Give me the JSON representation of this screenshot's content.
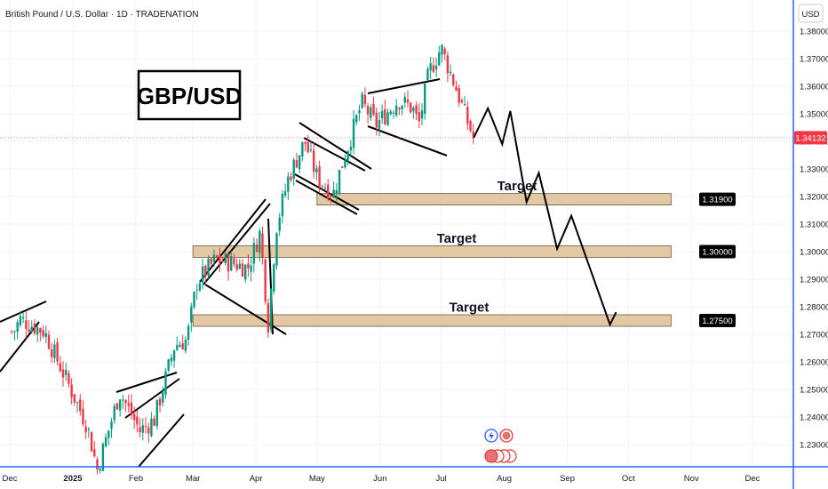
{
  "header": {
    "title": "British Pound / U.S. Dollar · 1D · TRADENATION",
    "currency": "USD"
  },
  "pair_label": "GBP/USD",
  "colors": {
    "up": "#089981",
    "down": "#f23645",
    "zone_fill": "#e2c9a4",
    "zone_stroke": "#6b5a45",
    "price_badge": "#f23645",
    "target_badge": "#000000",
    "grid": "#f0f3fa",
    "axis_border": "#2962ff"
  },
  "chart_data": {
    "type": "candlestick",
    "title": "British Pound / U.S. Dollar · 1D · TRADENATION",
    "ylim": [
      1.222,
      1.3856
    ],
    "y_ticks": [
      "1.38000",
      "1.37000",
      "1.36000",
      "1.35000",
      "1.34000",
      "1.33000",
      "1.32000",
      "1.31000",
      "1.30000",
      "1.29000",
      "1.28000",
      "1.27000",
      "1.26000",
      "1.25000",
      "1.24000",
      "1.23000"
    ],
    "x_ticks": [
      "Dec",
      "2025",
      "Feb",
      "Mar",
      "Apr",
      "May",
      "Jun",
      "Jul",
      "Aug",
      "Sep",
      "Oct",
      "Nov",
      "Dec"
    ],
    "current_price": "1.34132",
    "price_anchors": [
      {
        "date": "2024-12-03",
        "close": 1.271
      },
      {
        "date": "2024-12-06",
        "close": 1.2755
      },
      {
        "date": "2024-12-18",
        "close": 1.271
      },
      {
        "date": "2025-01-08",
        "close": 1.237
      },
      {
        "date": "2025-01-13",
        "close": 1.221
      },
      {
        "date": "2025-01-24",
        "close": 1.249
      },
      {
        "date": "2025-02-03",
        "close": 1.235
      },
      {
        "date": "2025-02-10",
        "close": 1.239
      },
      {
        "date": "2025-02-20",
        "close": 1.266
      },
      {
        "date": "2025-02-26",
        "close": 1.268
      },
      {
        "date": "2025-03-03",
        "close": 1.289
      },
      {
        "date": "2025-03-12",
        "close": 1.297
      },
      {
        "date": "2025-03-20",
        "close": 1.296
      },
      {
        "date": "2025-03-28",
        "close": 1.294
      },
      {
        "date": "2025-04-03",
        "close": 1.307
      },
      {
        "date": "2025-04-07",
        "close": 1.274
      },
      {
        "date": "2025-04-11",
        "close": 1.309
      },
      {
        "date": "2025-04-17",
        "close": 1.327
      },
      {
        "date": "2025-04-25",
        "close": 1.34
      },
      {
        "date": "2025-05-01",
        "close": 1.327
      },
      {
        "date": "2025-05-09",
        "close": 1.321
      },
      {
        "date": "2025-05-13",
        "close": 1.331
      },
      {
        "date": "2025-05-23",
        "close": 1.354
      },
      {
        "date": "2025-05-30",
        "close": 1.346
      },
      {
        "date": "2025-06-10",
        "close": 1.355
      },
      {
        "date": "2025-06-17",
        "close": 1.352
      },
      {
        "date": "2025-06-20",
        "close": 1.346
      },
      {
        "date": "2025-06-25",
        "close": 1.365
      },
      {
        "date": "2025-07-01",
        "close": 1.374
      },
      {
        "date": "2025-07-07",
        "close": 1.362
      },
      {
        "date": "2025-07-14",
        "close": 1.347
      },
      {
        "date": "2025-07-17",
        "close": 1.3413
      }
    ],
    "projection": [
      {
        "date": "2025-07-17",
        "value": 1.3413
      },
      {
        "date": "2025-07-24",
        "value": 1.352
      },
      {
        "date": "2025-07-31",
        "value": 1.339
      },
      {
        "date": "2025-08-04",
        "value": 1.351
      },
      {
        "date": "2025-08-12",
        "value": 1.318
      },
      {
        "date": "2025-08-18",
        "value": 1.3285
      },
      {
        "date": "2025-08-27",
        "value": 1.301
      },
      {
        "date": "2025-09-03",
        "value": 1.313
      },
      {
        "date": "2025-09-22",
        "value": 1.2735
      },
      {
        "date": "2025-09-25",
        "value": 1.278
      }
    ],
    "targets": [
      {
        "label": "Target",
        "value": 1.319,
        "display": "1.31900",
        "from": "2025-05-01",
        "to": "2025-10-22"
      },
      {
        "label": "Target",
        "value": 1.3,
        "display": "1.30000",
        "from": "2025-03-01",
        "to": "2025-10-22"
      },
      {
        "label": "Target",
        "value": 1.275,
        "display": "1.27500",
        "from": "2025-03-01",
        "to": "2025-10-22"
      }
    ]
  }
}
